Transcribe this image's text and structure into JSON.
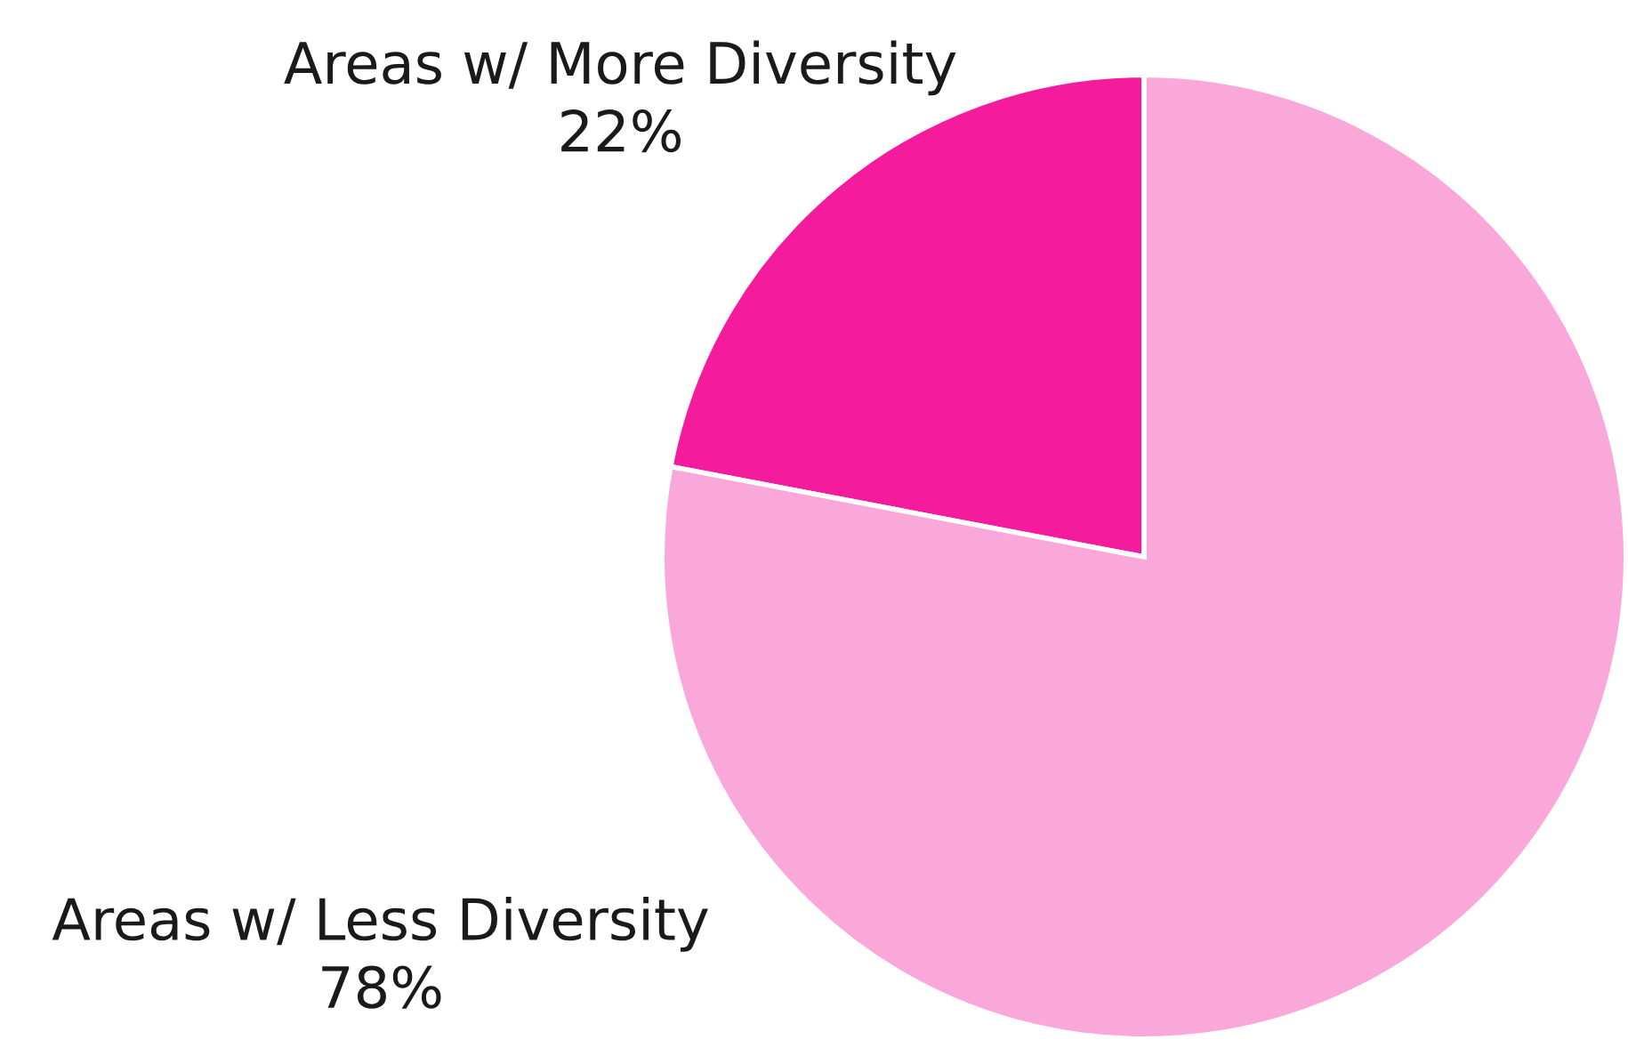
{
  "chart_data": {
    "type": "pie",
    "categories": [
      "Areas w/ More Diversity",
      "Areas w/ Less Diversity"
    ],
    "values": [
      22,
      78
    ],
    "colors": [
      "#f41c9c",
      "#f9a8d9"
    ],
    "value_labels": [
      "22%",
      "78%"
    ]
  }
}
